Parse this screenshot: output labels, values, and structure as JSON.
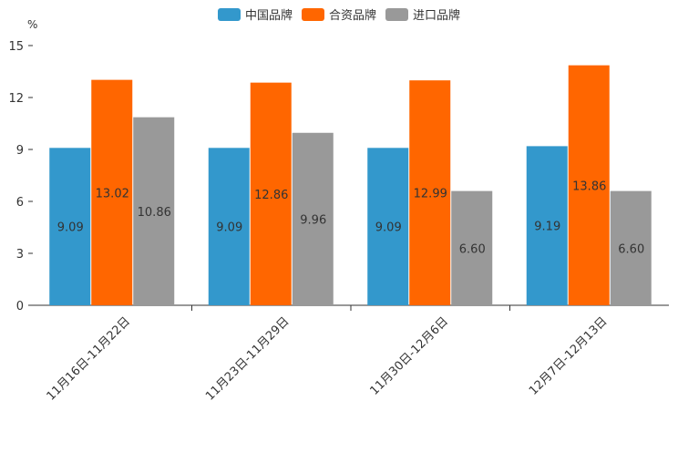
{
  "chart_data": {
    "type": "bar",
    "unit_label": "%",
    "categories": [
      "11月16日-11月22日",
      "11月23日-11月29日",
      "11月30日-12月6日",
      "12月7日-12月13日"
    ],
    "series": [
      {
        "name": "中国品牌",
        "color": "#3398CC",
        "values": [
          9.09,
          9.09,
          9.09,
          9.19
        ],
        "labels": [
          "9.09",
          "9.09",
          "9.09",
          "9.19"
        ]
      },
      {
        "name": "合资品牌",
        "color": "#FF6600",
        "values": [
          13.02,
          12.86,
          12.99,
          13.86
        ],
        "labels": [
          "13.02",
          "12.86",
          "12.99",
          "13.86"
        ]
      },
      {
        "name": "进口品牌",
        "color": "#999999",
        "values": [
          10.86,
          9.96,
          6.6,
          6.6
        ],
        "labels": [
          "10.86",
          "9.96",
          "6.60",
          "6.60"
        ]
      }
    ],
    "yticks": [
      "0",
      "3",
      "6",
      "9",
      "12",
      "15"
    ],
    "ylim": [
      0,
      15
    ],
    "legend_position": "top-center"
  }
}
